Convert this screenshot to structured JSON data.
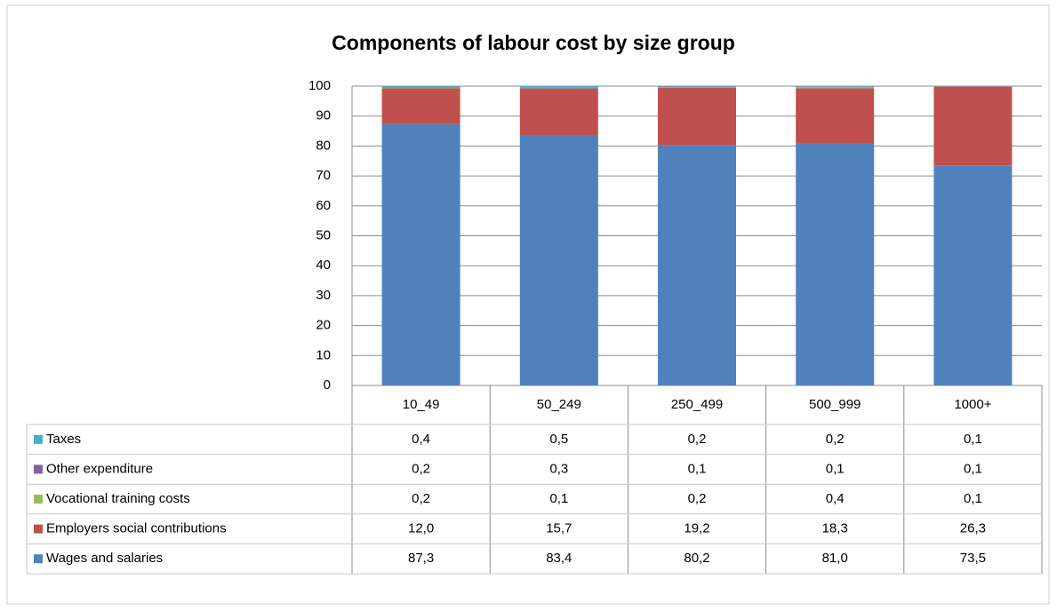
{
  "chart_data": {
    "type": "stacked_bar",
    "title": "Components of labour cost by size group",
    "categories": [
      "10_49",
      "50_249",
      "250_499",
      "500_999",
      "1000+"
    ],
    "series": [
      {
        "name": "Taxes",
        "color": "#4bacc6",
        "values": [
          0.4,
          0.5,
          0.2,
          0.2,
          0.1
        ],
        "value_labels": [
          "0,4",
          "0,5",
          "0,2",
          "0,2",
          "0,1"
        ]
      },
      {
        "name": "Other expenditure",
        "color": "#8064a2",
        "values": [
          0.2,
          0.3,
          0.1,
          0.1,
          0.1
        ],
        "value_labels": [
          "0,2",
          "0,3",
          "0,1",
          "0,1",
          "0,1"
        ]
      },
      {
        "name": "Vocational training costs",
        "color": "#9bbb59",
        "values": [
          0.2,
          0.1,
          0.2,
          0.4,
          0.1
        ],
        "value_labels": [
          "0,2",
          "0,1",
          "0,2",
          "0,4",
          "0,1"
        ]
      },
      {
        "name": "Employers social contributions",
        "color": "#c0504d",
        "values": [
          12.0,
          15.7,
          19.2,
          18.3,
          26.3
        ],
        "value_labels": [
          "12,0",
          "15,7",
          "19,2",
          "18,3",
          "26,3"
        ]
      },
      {
        "name": "Wages and salaries",
        "color": "#4f81bd",
        "values": [
          87.3,
          83.4,
          80.2,
          81.0,
          73.5
        ],
        "value_labels": [
          "87,3",
          "83,4",
          "80,2",
          "81,0",
          "73,5"
        ]
      }
    ],
    "ylim": [
      0,
      100
    ],
    "yticks": [
      0,
      10,
      20,
      30,
      40,
      50,
      60,
      70,
      80,
      90,
      100
    ],
    "grid": true
  }
}
